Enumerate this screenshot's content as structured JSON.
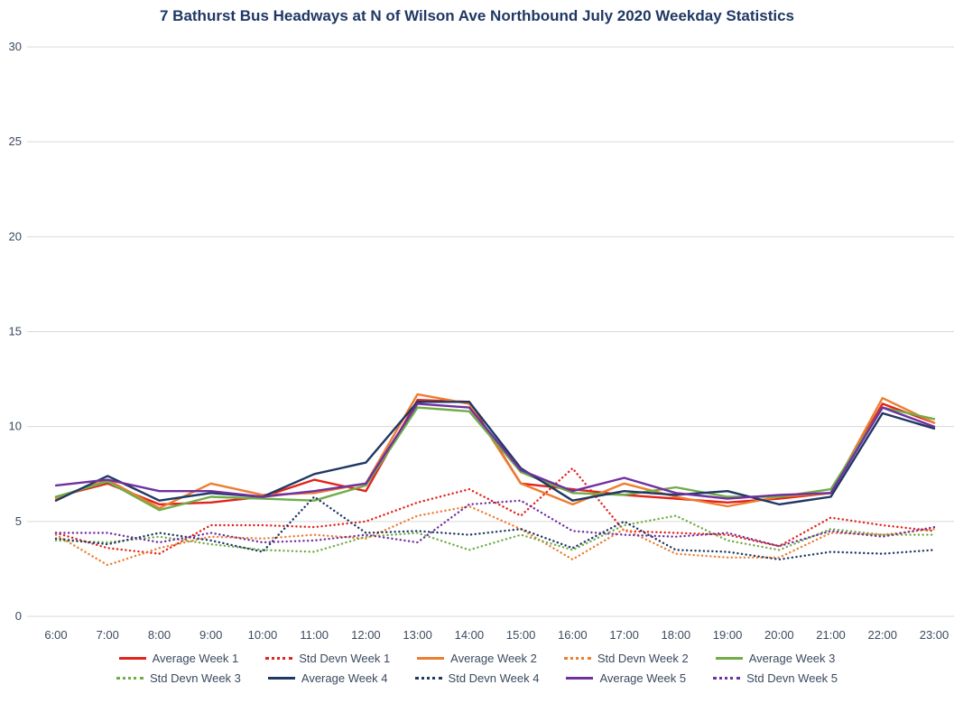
{
  "title": "7 Bathurst Bus Headways at N of Wilson Ave Northbound July 2020 Weekday Statistics",
  "chart_data": {
    "type": "line",
    "title": "7 Bathurst Bus Headways at N of Wilson Ave Northbound July 2020 Weekday Statistics",
    "xlabel": "",
    "ylabel": "",
    "ylim": [
      0,
      30
    ],
    "yticks": [
      0,
      5,
      10,
      15,
      20,
      25,
      30
    ],
    "grid": true,
    "legend_position": "bottom",
    "x": [
      "6:00",
      "7:00",
      "8:00",
      "9:00",
      "10:00",
      "11:00",
      "12:00",
      "13:00",
      "14:00",
      "15:00",
      "16:00",
      "17:00",
      "18:00",
      "19:00",
      "20:00",
      "21:00",
      "22:00",
      "23:00"
    ],
    "series": [
      {
        "name": "Average Week 1",
        "style": "solid",
        "color": "#e2231a",
        "values": [
          6.3,
          7.0,
          5.9,
          6.0,
          6.3,
          7.2,
          6.6,
          11.4,
          11.3,
          7.0,
          6.7,
          6.4,
          6.2,
          6.0,
          6.2,
          6.5,
          11.2,
          10.2
        ]
      },
      {
        "name": "Std Devn Week 1",
        "style": "dotted",
        "color": "#e2231a",
        "values": [
          4.4,
          3.6,
          3.3,
          4.8,
          4.8,
          4.7,
          5.0,
          6.0,
          6.7,
          5.3,
          7.8,
          4.5,
          4.4,
          4.3,
          3.7,
          5.2,
          4.8,
          4.5
        ]
      },
      {
        "name": "Average Week 2",
        "style": "solid",
        "color": "#ed7d31",
        "values": [
          6.2,
          7.2,
          5.7,
          7.0,
          6.4,
          6.5,
          7.0,
          11.7,
          11.2,
          7.0,
          5.9,
          7.0,
          6.3,
          5.8,
          6.3,
          6.5,
          11.5,
          10.2
        ]
      },
      {
        "name": "Std Devn Week 2",
        "style": "dotted",
        "color": "#ed7d31",
        "values": [
          4.3,
          2.7,
          3.6,
          4.2,
          4.1,
          4.3,
          4.1,
          5.3,
          5.8,
          4.6,
          3.0,
          4.6,
          3.3,
          3.1,
          3.1,
          4.4,
          4.3,
          4.6
        ]
      },
      {
        "name": "Average Week 3",
        "style": "solid",
        "color": "#70ad47",
        "values": [
          6.3,
          7.1,
          5.6,
          6.3,
          6.2,
          6.1,
          6.9,
          11.0,
          10.8,
          7.6,
          6.5,
          6.4,
          6.8,
          6.3,
          6.3,
          6.7,
          11.0,
          10.4
        ]
      },
      {
        "name": "Std Devn Week 3",
        "style": "dotted",
        "color": "#70ad47",
        "values": [
          4.0,
          3.9,
          4.2,
          3.8,
          3.5,
          3.4,
          4.2,
          4.4,
          3.5,
          4.3,
          3.5,
          4.8,
          5.3,
          4.0,
          3.5,
          4.6,
          4.3,
          4.3
        ]
      },
      {
        "name": "Average Week 4",
        "style": "solid",
        "color": "#1f3864",
        "values": [
          6.1,
          7.4,
          6.1,
          6.5,
          6.3,
          7.5,
          8.1,
          11.3,
          11.3,
          7.8,
          6.1,
          6.6,
          6.4,
          6.6,
          5.9,
          6.3,
          10.7,
          9.9
        ]
      },
      {
        "name": "Std Devn Week 4",
        "style": "dotted",
        "color": "#1f3864",
        "values": [
          4.1,
          3.8,
          4.4,
          4.0,
          3.4,
          6.3,
          4.4,
          4.5,
          4.3,
          4.6,
          3.6,
          5.0,
          3.5,
          3.4,
          3.0,
          3.4,
          3.3,
          3.5
        ]
      },
      {
        "name": "Average Week 5",
        "style": "solid",
        "color": "#7030a0",
        "values": [
          6.9,
          7.2,
          6.6,
          6.6,
          6.3,
          6.6,
          7.0,
          11.2,
          11.0,
          7.7,
          6.6,
          7.3,
          6.5,
          6.2,
          6.4,
          6.5,
          11.0,
          10.0
        ]
      },
      {
        "name": "Std Devn Week 5",
        "style": "dotted",
        "color": "#7030a0",
        "values": [
          4.4,
          4.4,
          3.9,
          4.4,
          3.9,
          4.0,
          4.3,
          3.9,
          5.9,
          6.1,
          4.5,
          4.3,
          4.2,
          4.4,
          3.7,
          4.5,
          4.2,
          4.7
        ]
      }
    ]
  }
}
